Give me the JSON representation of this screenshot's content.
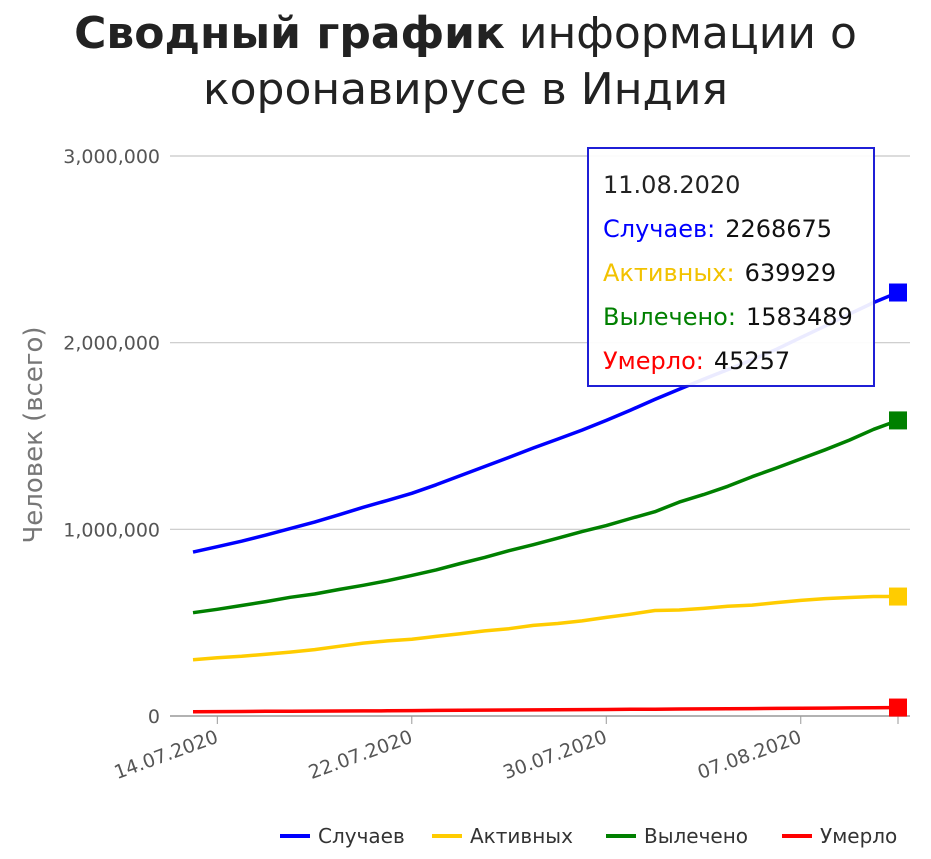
{
  "title_bold": "Сводный график",
  "title_rest_line1": "информации о",
  "title_line2": "коронавирусе в Индия",
  "chart_data": {
    "type": "line",
    "title": "Сводный график информации о коронавирусе в Индия",
    "ylabel": "Человек (всего)",
    "xlabel": "",
    "ylim": [
      0,
      3000000
    ],
    "yticks": [
      0,
      1000000,
      2000000,
      3000000
    ],
    "ytick_labels": [
      "0",
      "1,000,000",
      "2,000,000",
      "3,000,000"
    ],
    "xtick_labels": [
      "14.07.2020",
      "22.07.2020",
      "30.07.2020",
      "07.08.2020"
    ],
    "xtick_indices": [
      1,
      9,
      17,
      25
    ],
    "x": [
      "13.07.2020",
      "14.07.2020",
      "15.07.2020",
      "16.07.2020",
      "17.07.2020",
      "18.07.2020",
      "19.07.2020",
      "20.07.2020",
      "21.07.2020",
      "22.07.2020",
      "23.07.2020",
      "24.07.2020",
      "25.07.2020",
      "26.07.2020",
      "27.07.2020",
      "28.07.2020",
      "29.07.2020",
      "30.07.2020",
      "31.07.2020",
      "01.08.2020",
      "02.08.2020",
      "03.08.2020",
      "04.08.2020",
      "05.08.2020",
      "06.08.2020",
      "07.08.2020",
      "08.08.2020",
      "09.08.2020",
      "10.08.2020",
      "11.08.2020"
    ],
    "grid": true,
    "legend_position": "bottom-right",
    "series": [
      {
        "name": "Случаев",
        "color": "#0000ff",
        "values": [
          878254,
          906752,
          936181,
          968876,
          1003832,
          1038716,
          1077781,
          1118043,
          1155191,
          1192915,
          1238635,
          1287945,
          1336861,
          1385522,
          1435453,
          1483156,
          1531669,
          1583792,
          1638870,
          1695988,
          1750723,
          1803695,
          1855745,
          1908254,
          1964536,
          2027074,
          2088611,
          2153010,
          2215074,
          2268675
        ]
      },
      {
        "name": "Активных",
        "color": "#ffcc00",
        "values": [
          301609,
          311565,
          319840,
          331146,
          342473,
          355705,
          373379,
          390459,
          402529,
          411133,
          426167,
          440135,
          456071,
          467882,
          485114,
          495499,
          509447,
          528242,
          545318,
          565103,
          567730,
          576357,
          587501,
          593994,
          607384,
          619088,
          628747,
          634945,
          639929,
          639929
        ]
      },
      {
        "name": "Вылечено",
        "color": "#008000",
        "values": [
          553471,
          571460,
          592032,
          612768,
          635757,
          653751,
          677423,
          700087,
          724578,
          753050,
          782607,
          817209,
          849432,
          885576,
          917568,
          952743,
          988029,
          1019735,
          1057805,
          1094374,
          1145629,
          1186203,
          1230509,
          1282215,
          1328336,
          1377384,
          1426200,
          1478121,
          1535743,
          1583489
        ]
      },
      {
        "name": "Умерло",
        "color": "#ff0000",
        "values": [
          23174,
          23727,
          24309,
          24915,
          25602,
          26273,
          26816,
          27497,
          28084,
          28732,
          29861,
          30601,
          31358,
          32063,
          32771,
          33408,
          34193,
          35003,
          35747,
          36511,
          37364,
          38135,
          38938,
          39795,
          40699,
          41585,
          42518,
          43379,
          44386,
          45257
        ]
      }
    ]
  },
  "tooltip": {
    "date": "11.08.2020",
    "rows": [
      {
        "label": "Случаев:",
        "value": "2268675",
        "color": "#0000ff"
      },
      {
        "label": "Активных:",
        "value": "639929",
        "color": "#ffcc00"
      },
      {
        "label": "Вылечено:",
        "value": "1583489",
        "color": "#008000"
      },
      {
        "label": "Умерло:",
        "value": "45257",
        "color": "#ff0000"
      }
    ]
  }
}
